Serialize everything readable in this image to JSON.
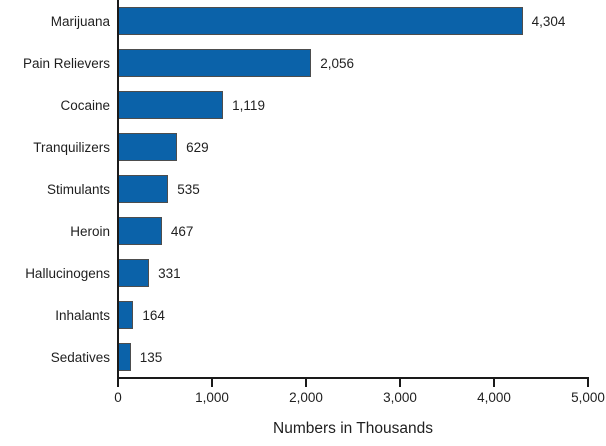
{
  "chart_data": {
    "type": "bar",
    "orientation": "horizontal",
    "categories": [
      "Marijuana",
      "Pain Relievers",
      "Cocaine",
      "Tranquilizers",
      "Stimulants",
      "Heroin",
      "Hallucinogens",
      "Inhalants",
      "Sedatives"
    ],
    "values": [
      4304,
      2056,
      1119,
      629,
      535,
      467,
      331,
      164,
      135
    ],
    "value_labels": [
      "4,304",
      "2,056",
      "1,119",
      "629",
      "535",
      "467",
      "331",
      "164",
      "135"
    ],
    "title": "",
    "xlabel": "Numbers in Thousands",
    "ylabel": "",
    "xlim": [
      0,
      5000
    ],
    "x_ticks": [
      0,
      1000,
      2000,
      3000,
      4000,
      5000
    ],
    "x_tick_labels": [
      "0",
      "1,000",
      "2,000",
      "3,000",
      "4,000",
      "5,000"
    ],
    "grid": false,
    "legend": false,
    "bar_color": "#0b62a9",
    "bar_border_color": "#4d4d4d",
    "axis_color": "#1a1a1a",
    "text_color": "#1f1f1f",
    "background_color": "#ffffff"
  }
}
